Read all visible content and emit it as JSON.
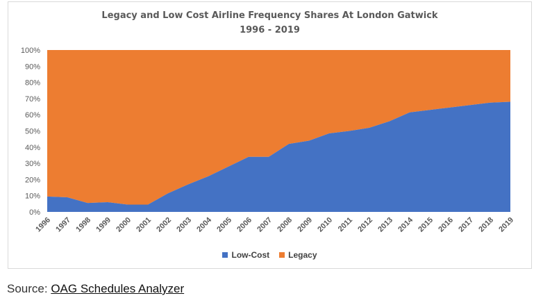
{
  "chart_data": {
    "type": "area",
    "title": "Legacy and Low Cost Airline Frequency Shares At London Gatwick",
    "subtitle": "1996 - 2019",
    "stacked": true,
    "categories": [
      "1996",
      "1997",
      "1998",
      "1999",
      "2000",
      "2001",
      "2002",
      "2003",
      "2004",
      "2005",
      "2006",
      "2007",
      "2008",
      "2009",
      "2010",
      "2011",
      "2012",
      "2013",
      "2014",
      "2015",
      "2016",
      "2017",
      "2018",
      "2019"
    ],
    "series": [
      {
        "name": "Low-Cost",
        "color": "#4472C4",
        "values": [
          9.5,
          9,
          5.5,
          6,
          4.5,
          4.5,
          11.5,
          17,
          22,
          28,
          34,
          34,
          42,
          44,
          48.5,
          50,
          52,
          56,
          61.5,
          63,
          64.5,
          66,
          67.5,
          68
        ]
      },
      {
        "name": "Legacy",
        "color": "#ED7D31",
        "values": [
          90.5,
          91,
          94.5,
          94,
          95.5,
          95.5,
          88.5,
          83,
          78,
          72,
          66,
          66,
          58,
          56,
          51.5,
          50,
          48,
          44,
          38.5,
          37,
          35.5,
          34,
          32.5,
          32
        ]
      }
    ],
    "y_ticks": [
      "0%",
      "10%",
      "20%",
      "30%",
      "40%",
      "50%",
      "60%",
      "70%",
      "80%",
      "90%",
      "100%"
    ],
    "ylim": [
      0,
      100
    ],
    "grid": false,
    "legend_position": "bottom"
  },
  "source": {
    "prefix": "Source: ",
    "link_text": "OAG Schedules Analyzer"
  }
}
